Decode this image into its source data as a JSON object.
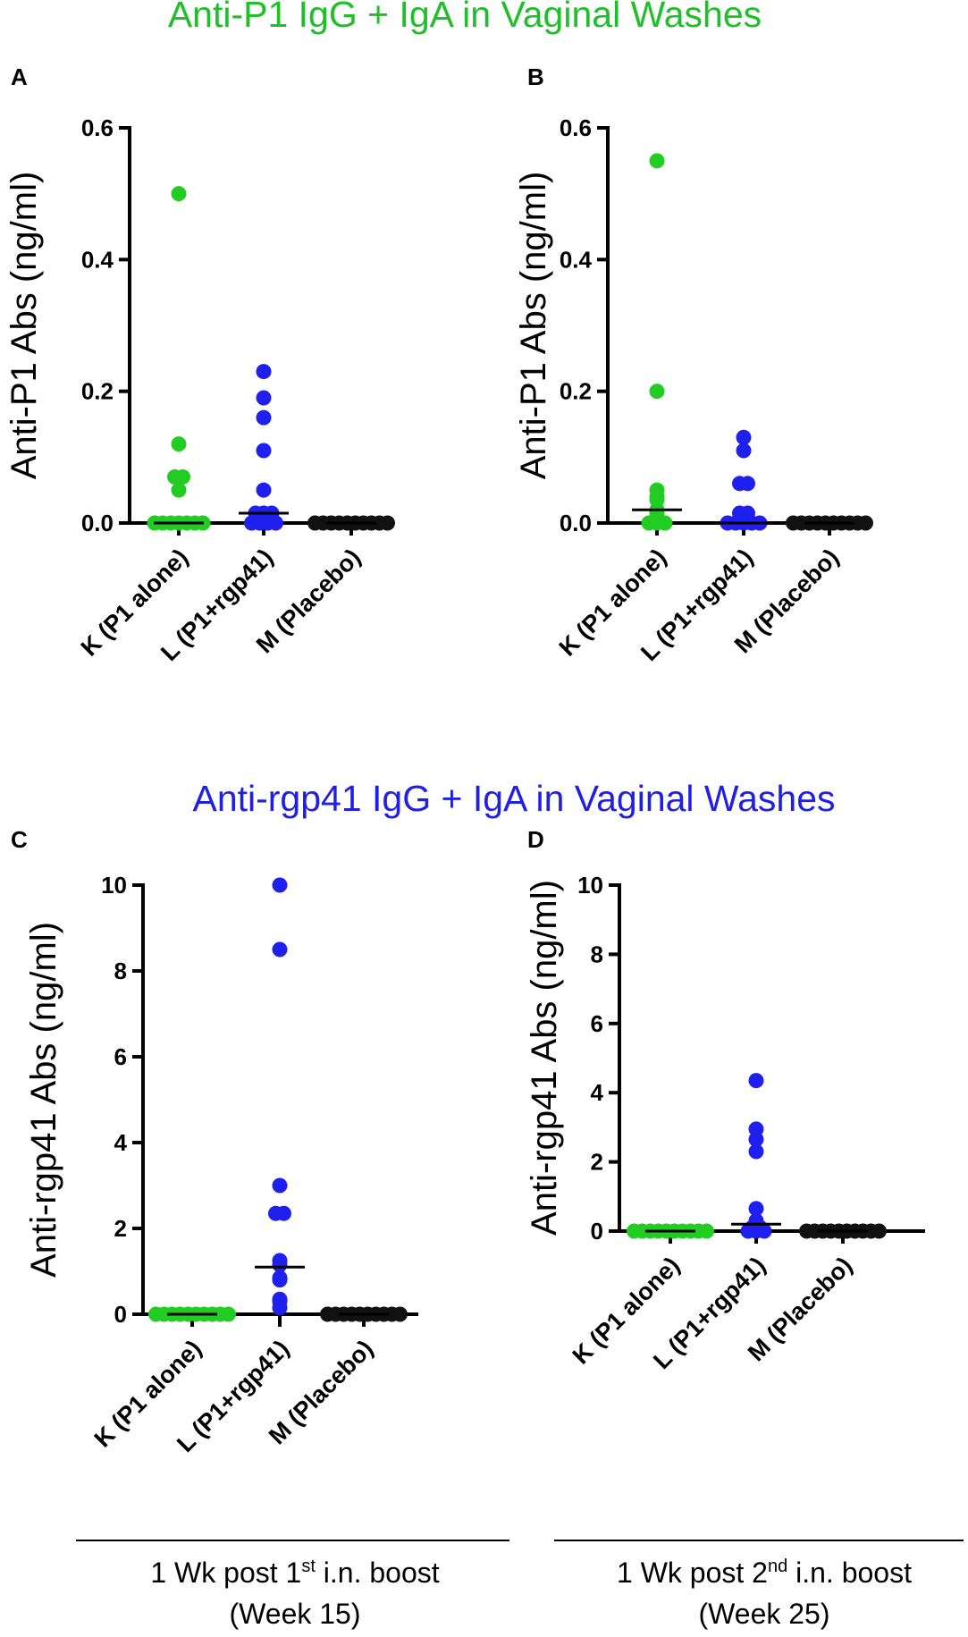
{
  "titles": {
    "top": "Anti-P1  IgG + IgA in Vaginal Washes",
    "bottom": "Anti-rgp41  IgG + IgA in Vaginal Washes"
  },
  "colors": {
    "top_title": "#1fbf2a",
    "bottom_title": "#1f1fe6",
    "K": "#22cc22",
    "L": "#1f1fee",
    "M": "#111111"
  },
  "timepoints": [
    {
      "line1": "1 Wk post 1",
      "sup": "st",
      "line1b": " i.n. boost",
      "line2": "(Week 15)"
    },
    {
      "line1": "1 Wk post 2",
      "sup": "nd",
      "line1b": " i.n. boost",
      "line2": "(Week 25)"
    }
  ],
  "chart_data": [
    {
      "panel": "A",
      "type": "scatter",
      "ylabel": "Anti-P1 Abs (ng/ml)",
      "ylim": [
        0,
        0.6
      ],
      "yticks": [
        "0.0",
        "0.2",
        "0.4",
        "0.6"
      ],
      "ytick_values": [
        0,
        0.2,
        0.4,
        0.6
      ],
      "categories": [
        "K (P1 alone)",
        "L (P1+rgp41)",
        "M (Placebo)"
      ],
      "series": [
        {
          "name": "K (P1 alone)",
          "values": [
            0.5,
            0.12,
            0.07,
            0.07,
            0.05,
            0.0,
            0.0,
            0.0,
            0.0,
            0.0,
            0.0,
            0.0
          ],
          "median": 0.0
        },
        {
          "name": "L (P1+rgp41)",
          "values": [
            0.23,
            0.19,
            0.16,
            0.11,
            0.05,
            0.015,
            0.015,
            0.015,
            0.0,
            0.0,
            0.0,
            0.0
          ],
          "median": 0.015
        },
        {
          "name": "M (Placebo)",
          "values": [
            0,
            0,
            0,
            0,
            0,
            0,
            0,
            0,
            0,
            0
          ],
          "median": 0.0
        }
      ]
    },
    {
      "panel": "B",
      "type": "scatter",
      "ylabel": "Anti-P1 Abs (ng/ml)",
      "ylim": [
        0,
        0.6
      ],
      "yticks": [
        "0.0",
        "0.2",
        "0.4",
        "0.6"
      ],
      "ytick_values": [
        0,
        0.2,
        0.4,
        0.6
      ],
      "categories": [
        "K (P1 alone)",
        "L (P1+rgp41)",
        "M (Placebo)"
      ],
      "series": [
        {
          "name": "K (P1 alone)",
          "values": [
            0.55,
            0.2,
            0.05,
            0.04,
            0.035,
            0.02,
            0.015,
            0.01,
            0.0,
            0.0,
            0.0
          ],
          "median": 0.02
        },
        {
          "name": "L (P1+rgp41)",
          "values": [
            0.13,
            0.11,
            0.06,
            0.06,
            0.015,
            0.015,
            0.0,
            0.0,
            0.0,
            0.0,
            0.0
          ],
          "median": 0.0
        },
        {
          "name": "M (Placebo)",
          "values": [
            0,
            0,
            0,
            0,
            0,
            0,
            0,
            0,
            0,
            0
          ],
          "median": 0.0
        }
      ]
    },
    {
      "panel": "C",
      "type": "scatter",
      "ylabel": "Anti-rgp41 Abs (ng/ml)",
      "ylim": [
        0,
        10
      ],
      "yticks": [
        "0",
        "2",
        "4",
        "6",
        "8",
        "10"
      ],
      "ytick_values": [
        0,
        2,
        4,
        6,
        8,
        10
      ],
      "categories": [
        "K (P1 alone)",
        "L (P1+rgp41)",
        "M (Placebo)"
      ],
      "series": [
        {
          "name": "K (P1 alone)",
          "values": [
            0,
            0,
            0,
            0,
            0,
            0,
            0,
            0,
            0,
            0
          ],
          "median": 0.0
        },
        {
          "name": "L (P1+rgp41)",
          "values": [
            10.0,
            8.5,
            3.0,
            2.35,
            2.35,
            1.25,
            1.15,
            0.85,
            0.8,
            0.35,
            0.3,
            0.15
          ],
          "median": 1.1
        },
        {
          "name": "M (Placebo)",
          "values": [
            0,
            0,
            0,
            0,
            0,
            0,
            0,
            0,
            0,
            0
          ],
          "median": 0.0
        }
      ]
    },
    {
      "panel": "D",
      "type": "scatter",
      "ylabel": "Anti-rgp41 Abs (ng/ml)",
      "ylim": [
        0,
        10
      ],
      "yticks": [
        "0",
        "2",
        "4",
        "6",
        "8",
        "10"
      ],
      "ytick_values": [
        0,
        2,
        4,
        6,
        8,
        10
      ],
      "categories": [
        "K (P1 alone)",
        "L (P1+rgp41)",
        "M (Placebo)"
      ],
      "series": [
        {
          "name": "K (P1 alone)",
          "values": [
            0,
            0,
            0,
            0,
            0,
            0,
            0,
            0,
            0,
            0
          ],
          "median": 0.0
        },
        {
          "name": "L (P1+rgp41)",
          "values": [
            4.35,
            2.95,
            2.65,
            2.3,
            0.65,
            0.3,
            0.1,
            0.1,
            0.05,
            0.0,
            0.0,
            0.0
          ],
          "median": 0.2
        },
        {
          "name": "M (Placebo)",
          "values": [
            0,
            0,
            0,
            0,
            0,
            0,
            0,
            0,
            0,
            0
          ],
          "median": 0.0
        }
      ]
    }
  ]
}
